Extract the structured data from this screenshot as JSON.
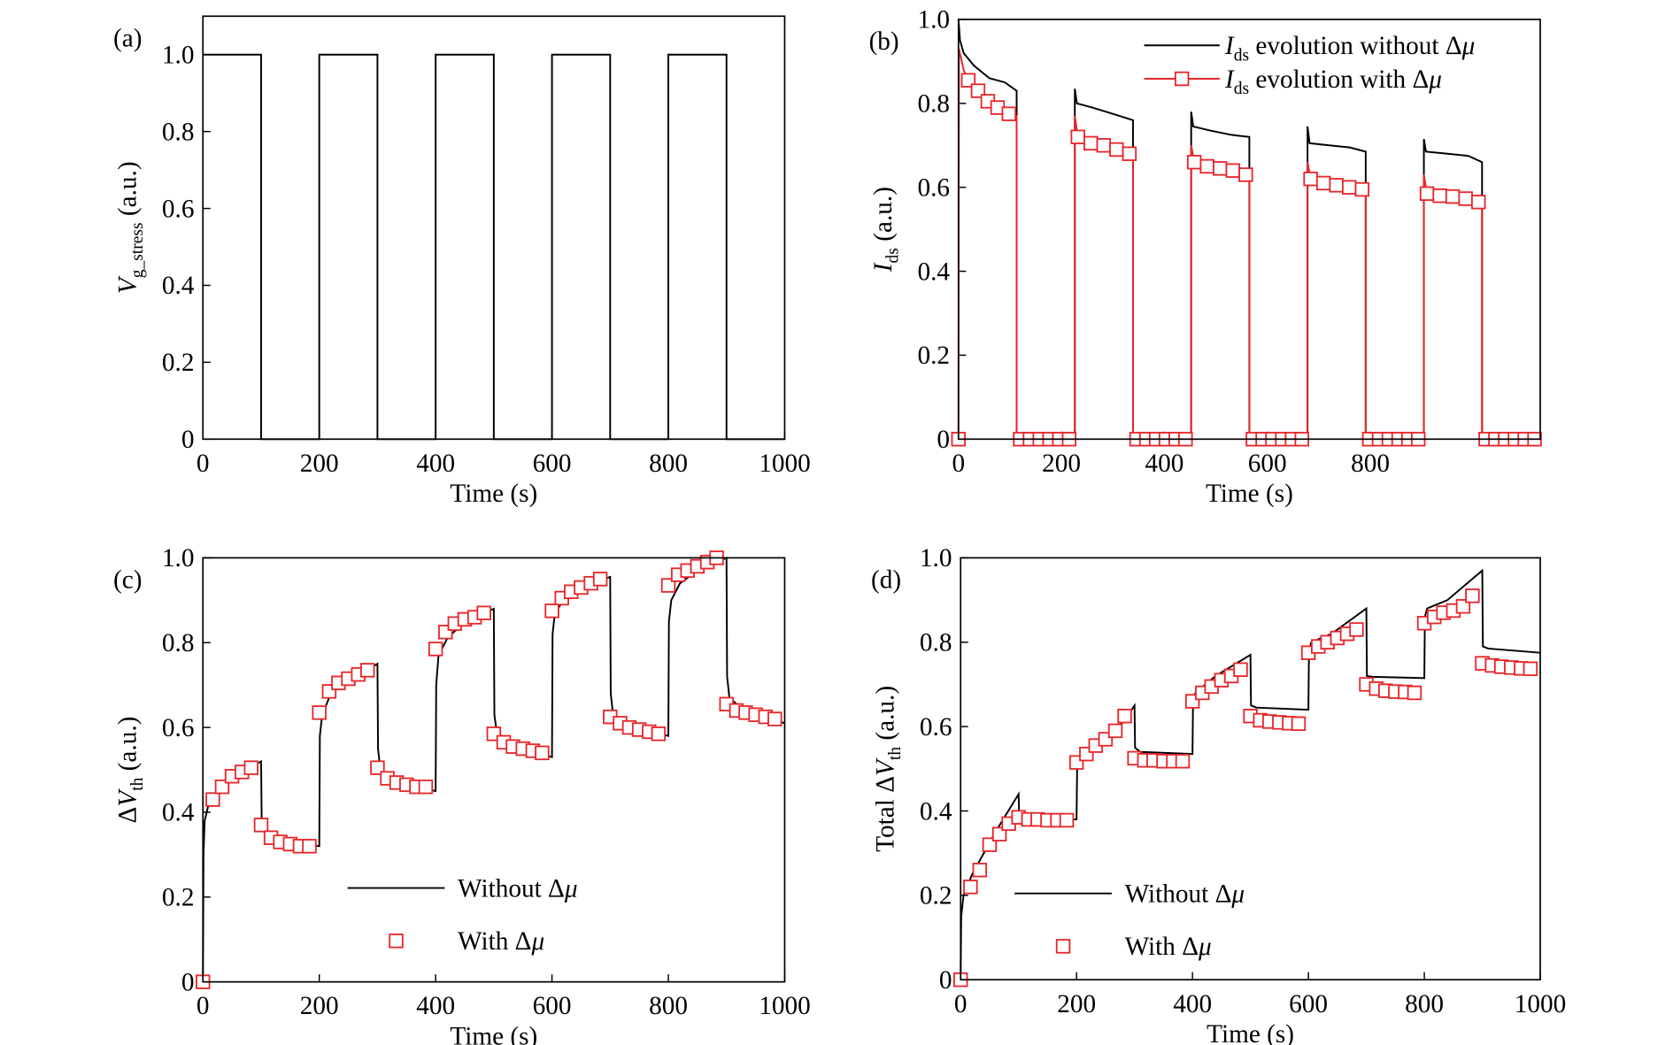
{
  "chart_data": [
    {
      "type": "line",
      "panel_label": "(a)",
      "xlabel": "Time (s)",
      "ylabel": [
        {
          "text": "V",
          "italic": true
        },
        {
          "text": "g_stress",
          "sub": true
        },
        {
          "text": " (a.u.)"
        }
      ],
      "xlim": [
        0,
        1000
      ],
      "ylim": [
        0,
        1.1
      ],
      "xticks": [
        0,
        200,
        400,
        600,
        800,
        1000
      ],
      "yticks": [
        0,
        0.2,
        0.4,
        0.6,
        0.8,
        {
          "value": 1,
          "label": "1.0"
        }
      ],
      "series": [
        {
          "color": "#000000",
          "x": [
            0,
            100,
            100,
            200,
            200,
            300,
            300,
            400,
            400,
            500,
            500,
            600,
            600,
            700,
            700,
            800,
            800,
            900,
            900,
            1000
          ],
          "values": [
            1,
            1,
            0,
            0,
            1,
            1,
            0,
            0,
            1,
            1,
            0,
            0,
            1,
            1,
            0,
            0,
            1,
            1,
            0,
            0
          ]
        }
      ]
    },
    {
      "type": "line",
      "panel_label": "(b)",
      "xlabel": "Time (s)",
      "ylabel": [
        {
          "text": "I",
          "italic": true
        },
        {
          "text": "ds",
          "sub": true
        },
        {
          "text": " (a.u.)"
        }
      ],
      "xlim": [
        0,
        1130
      ],
      "ylim": [
        0,
        1
      ],
      "xticks": [
        0,
        200,
        400,
        600,
        800
      ],
      "yticks": [
        0,
        0.2,
        0.4,
        0.6,
        0.8,
        {
          "value": 1,
          "label": "1.0"
        }
      ],
      "legend": "upper right",
      "series": [
        {
          "name": [
            {
              "text": "I",
              "italic": true
            },
            {
              "text": "ds",
              "sub": true
            },
            {
              "text": " evolution without Δ"
            },
            {
              "text": "μ",
              "italic": true
            }
          ],
          "color": "#000000",
          "x": [
            0,
            3,
            10,
            30,
            60,
            90,
            113,
            113,
            226,
            226,
            230,
            260,
            300,
            339,
            339,
            452,
            452,
            456,
            490,
            530,
            565,
            565,
            678,
            678,
            682,
            720,
            760,
            791,
            791,
            904,
            904,
            908,
            950,
            990,
            1017,
            1017,
            1130
          ],
          "values": [
            1,
            0.95,
            0.92,
            0.89,
            0.86,
            0.85,
            0.83,
            0,
            0,
            0.835,
            0.8,
            0.79,
            0.775,
            0.76,
            0,
            0,
            0.78,
            0.745,
            0.735,
            0.725,
            0.72,
            0,
            0,
            0.745,
            0.705,
            0.7,
            0.695,
            0.685,
            0,
            0,
            0.715,
            0.685,
            0.68,
            0.675,
            0.66,
            0,
            0
          ]
        },
        {
          "name": [
            {
              "text": "I",
              "italic": true
            },
            {
              "text": "ds",
              "sub": true
            },
            {
              "text": " evolution with Δ"
            },
            {
              "text": "μ",
              "italic": true
            }
          ],
          "color": "#e8262a",
          "marker": "square",
          "x": [
            0,
            1,
            10,
            19,
            38,
            57,
            76,
            98,
            113,
            113,
            226,
            226,
            232,
            339,
            339,
            452,
            452,
            458,
            565,
            565,
            678,
            678,
            684,
            791,
            791,
            904,
            904,
            910,
            1017,
            1017
          ],
          "values": [
            0,
            0.93,
            0.88,
            0.855,
            0.83,
            0.805,
            0.79,
            0.775,
            0.77,
            0,
            0,
            0.77,
            0.72,
            0.68,
            0,
            0,
            0.7,
            0.66,
            0.63,
            0,
            0,
            0.66,
            0.62,
            0.595,
            0,
            0,
            0.63,
            0.585,
            0.56,
            0
          ],
          "markers": {
            "x": [
              0,
              19,
              38,
              57,
              76,
              98,
              120,
              139,
              158,
              177,
              196,
              215,
              232,
              257,
              282,
              307,
              332,
              346,
              365,
              384,
              403,
              422,
              441,
              458,
              483,
              508,
              533,
              558,
              572,
              591,
              610,
              629,
              648,
              667,
              684,
              709,
              734,
              759,
              784,
              798,
              817,
              836,
              855,
              874,
              893,
              910,
              935,
              960,
              985,
              1010,
              1024,
              1043,
              1062,
              1081,
              1100,
              1119
            ],
            "values": [
              0,
              0.855,
              0.83,
              0.805,
              0.79,
              0.775,
              0,
              0,
              0,
              0,
              0,
              0,
              0.72,
              0.705,
              0.7,
              0.69,
              0.68,
              0,
              0,
              0,
              0,
              0,
              0,
              0.66,
              0.65,
              0.645,
              0.64,
              0.63,
              0,
              0,
              0,
              0,
              0,
              0,
              0.62,
              0.61,
              0.605,
              0.6,
              0.595,
              0,
              0,
              0,
              0,
              0,
              0,
              0.585,
              0.58,
              0.578,
              0.573,
              0.565,
              0,
              0,
              0,
              0,
              0,
              0
            ]
          }
        }
      ]
    },
    {
      "type": "line",
      "panel_label": "(c)",
      "xlabel": "Time (s)",
      "ylabel": [
        {
          "text": "Δ"
        },
        {
          "text": "V",
          "italic": true
        },
        {
          "text": "th",
          "sub": true
        },
        {
          "text": " (a.u.)"
        }
      ],
      "xlim": [
        0,
        1000
      ],
      "ylim": [
        0,
        1
      ],
      "xticks": [
        0,
        200,
        400,
        600,
        800,
        1000
      ],
      "yticks": [
        0,
        0.2,
        0.4,
        0.6,
        0.8,
        {
          "value": 1,
          "label": "1.0"
        }
      ],
      "legend": "lower center",
      "series": [
        {
          "name": [
            {
              "text": "Without Δ"
            },
            {
              "text": "μ",
              "italic": true
            }
          ],
          "color": "#000000",
          "x": [
            0,
            1,
            3,
            10,
            30,
            60,
            100,
            101,
            110,
            140,
            200,
            201,
            205,
            220,
            250,
            300,
            301,
            305,
            330,
            400,
            401,
            405,
            420,
            450,
            500,
            501,
            505,
            530,
            600,
            601,
            605,
            620,
            650,
            700,
            701,
            705,
            730,
            800,
            801,
            805,
            820,
            850,
            900,
            901,
            905,
            930,
            1000
          ],
          "values": [
            0,
            0.3,
            0.38,
            0.42,
            0.46,
            0.49,
            0.52,
            0.38,
            0.35,
            0.33,
            0.32,
            0.58,
            0.63,
            0.68,
            0.71,
            0.75,
            0.55,
            0.5,
            0.47,
            0.45,
            0.7,
            0.77,
            0.81,
            0.85,
            0.88,
            0.63,
            0.59,
            0.56,
            0.53,
            0.82,
            0.87,
            0.9,
            0.93,
            0.955,
            0.68,
            0.63,
            0.6,
            0.58,
            0.85,
            0.9,
            0.94,
            0.97,
            1,
            0.72,
            0.67,
            0.64,
            0.61
          ]
        },
        {
          "name": [
            {
              "text": "With Δ"
            },
            {
              "text": "μ",
              "italic": true
            }
          ],
          "color": "#e8262a",
          "marker": "square",
          "markers": {
            "x": [
              0,
              17,
              33,
              50,
              67,
              83,
              100,
              117,
              133,
              150,
              167,
              183,
              200,
              217,
              233,
              250,
              267,
              283,
              300,
              317,
              333,
              350,
              367,
              383,
              400,
              417,
              433,
              450,
              467,
              483,
              500,
              517,
              533,
              550,
              567,
              583,
              600,
              617,
              633,
              650,
              667,
              683,
              700,
              717,
              733,
              750,
              767,
              783,
              800,
              817,
              833,
              850,
              867,
              883,
              900,
              917,
              933,
              950,
              967,
              983
            ],
            "values": [
              0,
              0.43,
              0.46,
              0.485,
              0.495,
              0.505,
              0.37,
              0.34,
              0.33,
              0.325,
              0.32,
              0.32,
              0.635,
              0.685,
              0.705,
              0.715,
              0.725,
              0.735,
              0.505,
              0.48,
              0.47,
              0.465,
              0.46,
              0.46,
              0.785,
              0.825,
              0.845,
              0.855,
              0.86,
              0.87,
              0.585,
              0.565,
              0.555,
              0.55,
              0.545,
              0.54,
              0.875,
              0.905,
              0.92,
              0.93,
              0.94,
              0.95,
              0.625,
              0.61,
              0.6,
              0.595,
              0.59,
              0.585,
              0.935,
              0.96,
              0.97,
              0.98,
              0.99,
              1,
              0.655,
              0.64,
              0.635,
              0.63,
              0.625,
              0.62
            ]
          }
        }
      ]
    },
    {
      "type": "line",
      "panel_label": "(d)",
      "xlabel": "Time (s)",
      "ylabel": [
        {
          "text": "Total Δ"
        },
        {
          "text": "V",
          "italic": true
        },
        {
          "text": "th",
          "sub": true
        },
        {
          "text": " (a.u.)"
        }
      ],
      "xlim": [
        0,
        1000
      ],
      "ylim": [
        0,
        1
      ],
      "xticks": [
        0,
        200,
        400,
        600,
        800,
        1000
      ],
      "yticks": [
        0,
        0.2,
        0.4,
        0.6,
        0.8,
        {
          "value": 1,
          "label": "1.0"
        }
      ],
      "legend": "lower left",
      "series": [
        {
          "name": [
            {
              "text": "Without Δ"
            },
            {
              "text": "μ",
              "italic": true
            }
          ],
          "color": "#000000",
          "x": [
            0,
            1,
            5,
            20,
            60,
            100,
            101,
            110,
            200,
            201,
            205,
            240,
            280,
            300,
            301,
            310,
            400,
            401,
            405,
            440,
            500,
            501,
            510,
            600,
            601,
            605,
            640,
            700,
            701,
            710,
            800,
            801,
            805,
            840,
            900,
            901,
            910,
            1000
          ],
          "values": [
            0,
            0.15,
            0.2,
            0.25,
            0.35,
            0.44,
            0.39,
            0.38,
            0.38,
            0.5,
            0.53,
            0.57,
            0.61,
            0.65,
            0.55,
            0.54,
            0.535,
            0.66,
            0.68,
            0.72,
            0.77,
            0.65,
            0.645,
            0.64,
            0.78,
            0.8,
            0.82,
            0.88,
            0.72,
            0.718,
            0.715,
            0.86,
            0.88,
            0.9,
            0.97,
            0.79,
            0.785,
            0.775
          ]
        },
        {
          "name": [
            {
              "text": "With Δ"
            },
            {
              "text": "μ",
              "italic": true
            }
          ],
          "color": "#e8262a",
          "marker": "square",
          "markers": {
            "x": [
              0,
              17,
              33,
              50,
              67,
              83,
              100,
              117,
              133,
              150,
              167,
              183,
              200,
              217,
              233,
              250,
              267,
              283,
              300,
              317,
              333,
              350,
              367,
              383,
              400,
              417,
              433,
              450,
              467,
              483,
              500,
              517,
              533,
              550,
              567,
              583,
              600,
              617,
              633,
              650,
              667,
              683,
              700,
              717,
              733,
              750,
              767,
              783,
              800,
              817,
              833,
              850,
              867,
              883,
              900,
              917,
              933,
              950,
              967,
              983
            ],
            "values": [
              0,
              0.22,
              0.26,
              0.32,
              0.345,
              0.37,
              0.385,
              0.38,
              0.38,
              0.378,
              0.378,
              0.378,
              0.515,
              0.535,
              0.555,
              0.57,
              0.59,
              0.625,
              0.525,
              0.52,
              0.52,
              0.518,
              0.518,
              0.518,
              0.66,
              0.68,
              0.695,
              0.71,
              0.72,
              0.735,
              0.625,
              0.615,
              0.612,
              0.61,
              0.608,
              0.607,
              0.775,
              0.79,
              0.8,
              0.81,
              0.82,
              0.83,
              0.7,
              0.69,
              0.685,
              0.683,
              0.682,
              0.68,
              0.845,
              0.86,
              0.87,
              0.875,
              0.885,
              0.91,
              0.75,
              0.745,
              0.742,
              0.74,
              0.738,
              0.737
            ]
          }
        }
      ]
    }
  ]
}
